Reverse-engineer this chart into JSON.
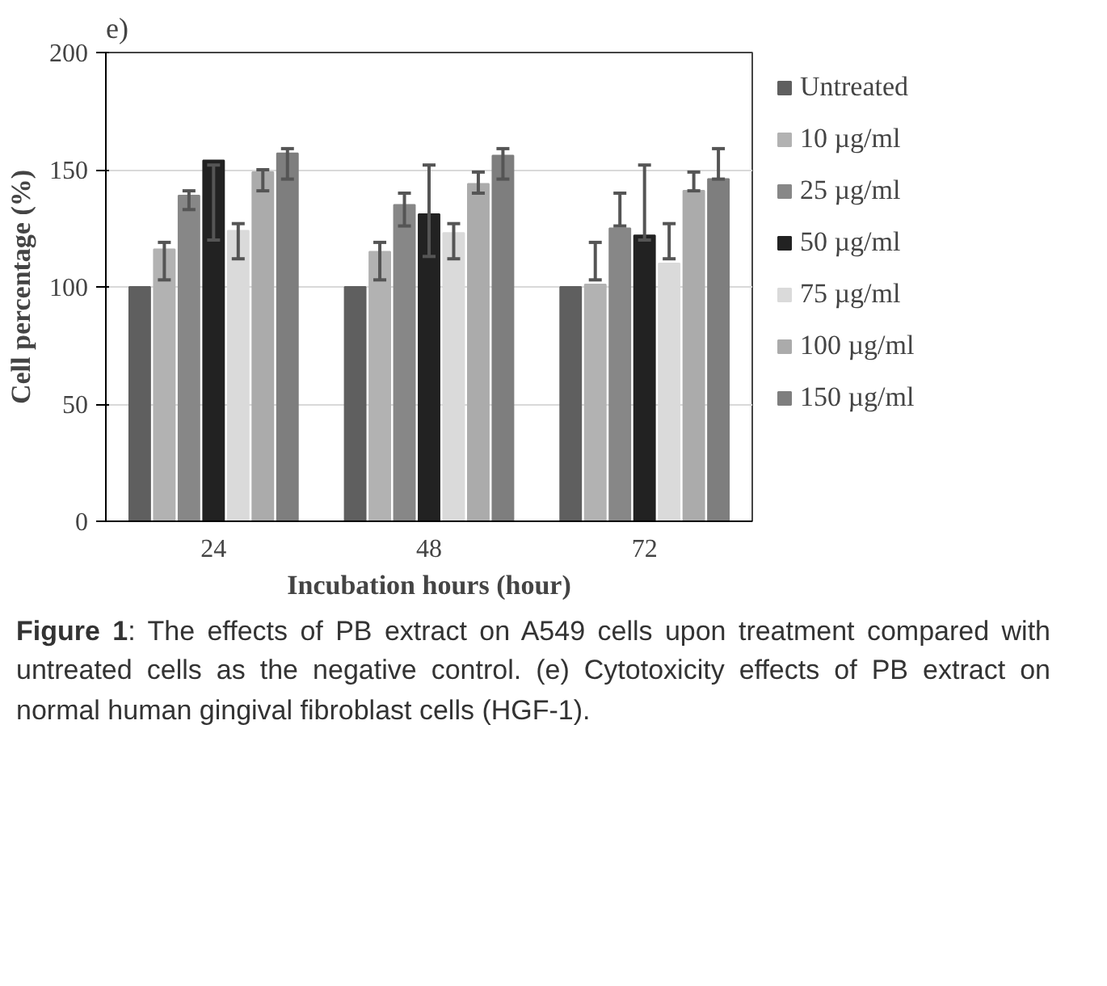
{
  "chart_data": {
    "type": "bar",
    "title": "e)",
    "xlabel": "Incubation hours (hour)",
    "ylabel": "Cell percentage (%)",
    "categories": [
      "24",
      "48",
      "72"
    ],
    "ylim": [
      0,
      200
    ],
    "yticks": [
      0,
      50,
      100,
      150,
      200
    ],
    "grid": "y",
    "legend": "right",
    "series": [
      {
        "name": "Untreated",
        "color": "#5f5f5f",
        "values": [
          100,
          100,
          100
        ]
      },
      {
        "name": "10 µg/ml",
        "color": "#b2b2b2",
        "values": [
          116,
          115,
          101
        ],
        "errors": [
          [
            103,
            119
          ],
          [
            103,
            119
          ],
          [
            103,
            119
          ]
        ]
      },
      {
        "name": "25 µg/ml",
        "color": "#878787",
        "values": [
          139,
          135,
          125
        ],
        "errors": [
          [
            133,
            141
          ],
          [
            126,
            140
          ],
          [
            126,
            140
          ]
        ]
      },
      {
        "name": "50 µg/ml",
        "color": "#222222",
        "values": [
          154,
          131,
          122
        ],
        "errors": [
          [
            120,
            152
          ],
          [
            113,
            152
          ],
          [
            120,
            152
          ]
        ]
      },
      {
        "name": "75 µg/ml",
        "color": "#dadada",
        "values": [
          124,
          123,
          110
        ],
        "errors": [
          [
            112,
            127
          ],
          [
            112,
            127
          ],
          [
            112,
            127
          ]
        ]
      },
      {
        "name": "100 µg/ml",
        "color": "#ababab",
        "values": [
          149,
          144,
          141
        ],
        "errors": [
          [
            141,
            150
          ],
          [
            140,
            149
          ],
          [
            141,
            149
          ]
        ]
      },
      {
        "name": "150 µg/ml",
        "color": "#7e7e7e",
        "values": [
          157,
          156,
          146
        ],
        "errors": [
          [
            146,
            159
          ],
          [
            146,
            159
          ],
          [
            146,
            159
          ]
        ]
      }
    ],
    "annotations": [
      "Figure 1: The effects of PB extract on A549 cells upon treatment compared with untreated cells as the negative control. (e) Cytotoxicity effects of PB extract on normal human gingival fibroblast cells (HGF-1)."
    ]
  }
}
